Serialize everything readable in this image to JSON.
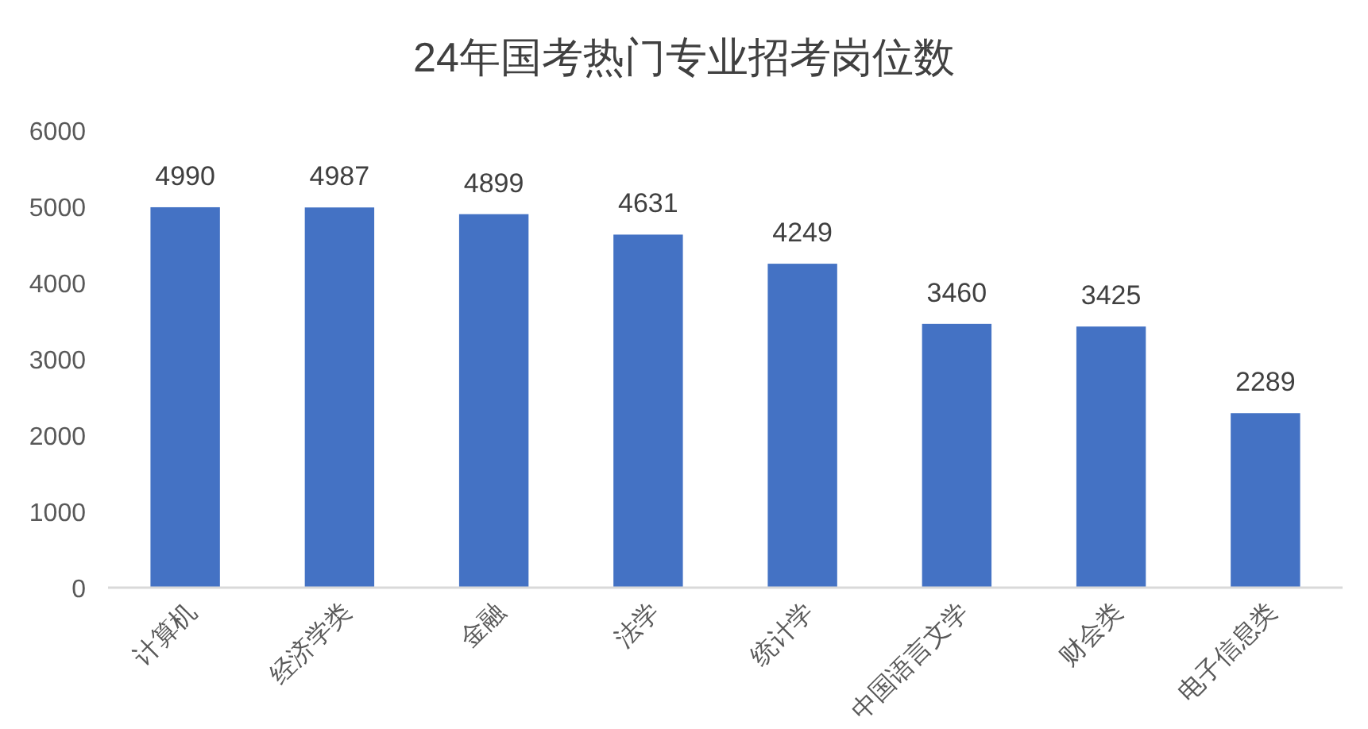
{
  "chart_data": {
    "type": "bar",
    "title": "24年国考热门专业招考岗位数",
    "categories": [
      "计算机",
      "经济学类",
      "金融",
      "法学",
      "统计学",
      "中国语言文学",
      "财会类",
      "电子信息类"
    ],
    "values": [
      4990,
      4987,
      4899,
      4631,
      4249,
      3460,
      3425,
      2289
    ],
    "color": "#4472c4",
    "ylim": [
      0,
      6000
    ],
    "yticks": [
      0,
      1000,
      2000,
      3000,
      4000,
      5000,
      6000
    ],
    "data_labels": true,
    "grid": false
  }
}
